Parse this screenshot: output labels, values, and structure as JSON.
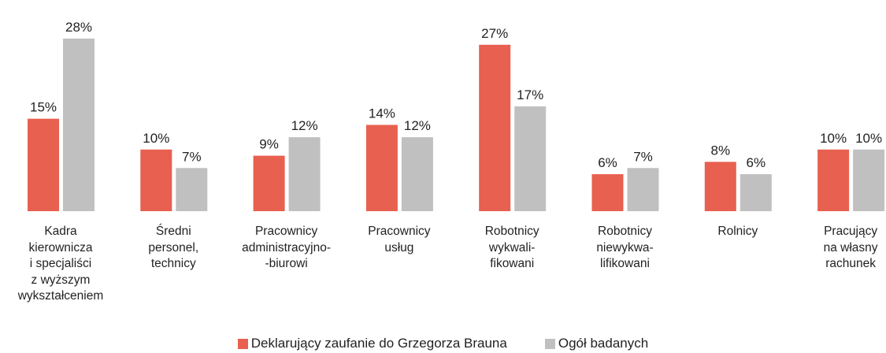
{
  "chart_data": {
    "type": "bar",
    "categories": [
      "Kadra\nkierownicza\ni specjaliści\nz wyższym\nwykształceniem",
      "Średni\npersonel,\ntechnicy",
      "Pracownicy\nadministracyjno-\n-biurowi",
      "Pracownicy\nusług",
      "Robotnicy\nwykwali-\nfikowani",
      "Robotnicy\nniewykwa-\nlifikowani",
      "Rolnicy",
      "Pracujący\nna własny\nrachunek"
    ],
    "series": [
      {
        "name": "Deklarujący zaufanie do Grzegorza Brauna",
        "color": "#e8604f",
        "values": [
          15,
          10,
          9,
          14,
          27,
          6,
          8,
          10
        ],
        "value_labels": [
          "15%",
          "10%",
          "9%",
          "14%",
          "27%",
          "6%",
          "8%",
          "10%"
        ]
      },
      {
        "name": "Ogół badanych",
        "color": "#c0c0c0",
        "values": [
          28,
          7,
          12,
          12,
          17,
          7,
          6,
          10
        ],
        "value_labels": [
          "28%",
          "7%",
          "12%",
          "12%",
          "17%",
          "7%",
          "6%",
          "10%"
        ]
      }
    ]
  }
}
